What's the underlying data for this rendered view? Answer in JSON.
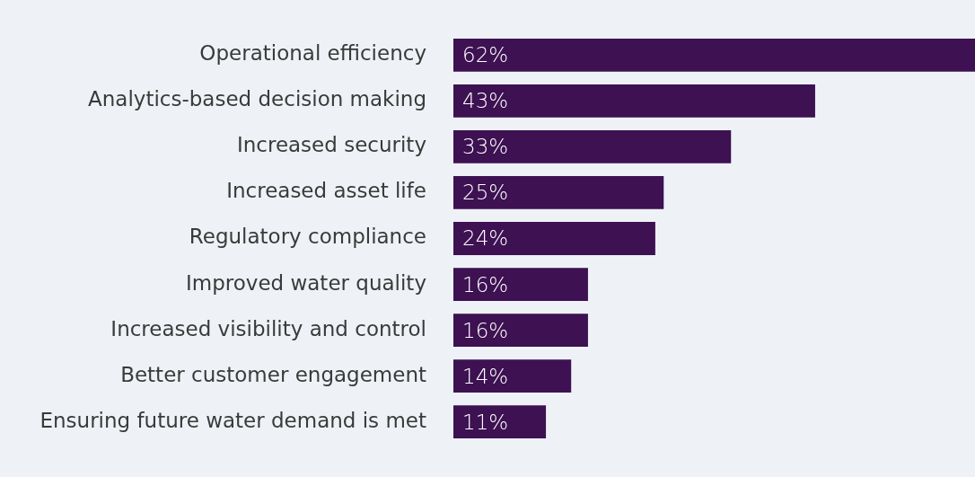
{
  "chart_data": {
    "type": "bar",
    "orientation": "horizontal",
    "categories": [
      "Operational efficiency",
      "Analytics-based decision making",
      "Increased security",
      "Increased asset life",
      "Regulatory compliance",
      "Improved water quality",
      "Increased visibility and control",
      "Better customer engagement",
      "Ensuring future water demand is met"
    ],
    "values": [
      62,
      43,
      33,
      25,
      24,
      16,
      16,
      14,
      11
    ],
    "value_labels": [
      "62%",
      "43%",
      "33%",
      "25%",
      "24%",
      "16%",
      "16%",
      "14%",
      "11%"
    ],
    "color": "#3d1152",
    "legend": false
  }
}
